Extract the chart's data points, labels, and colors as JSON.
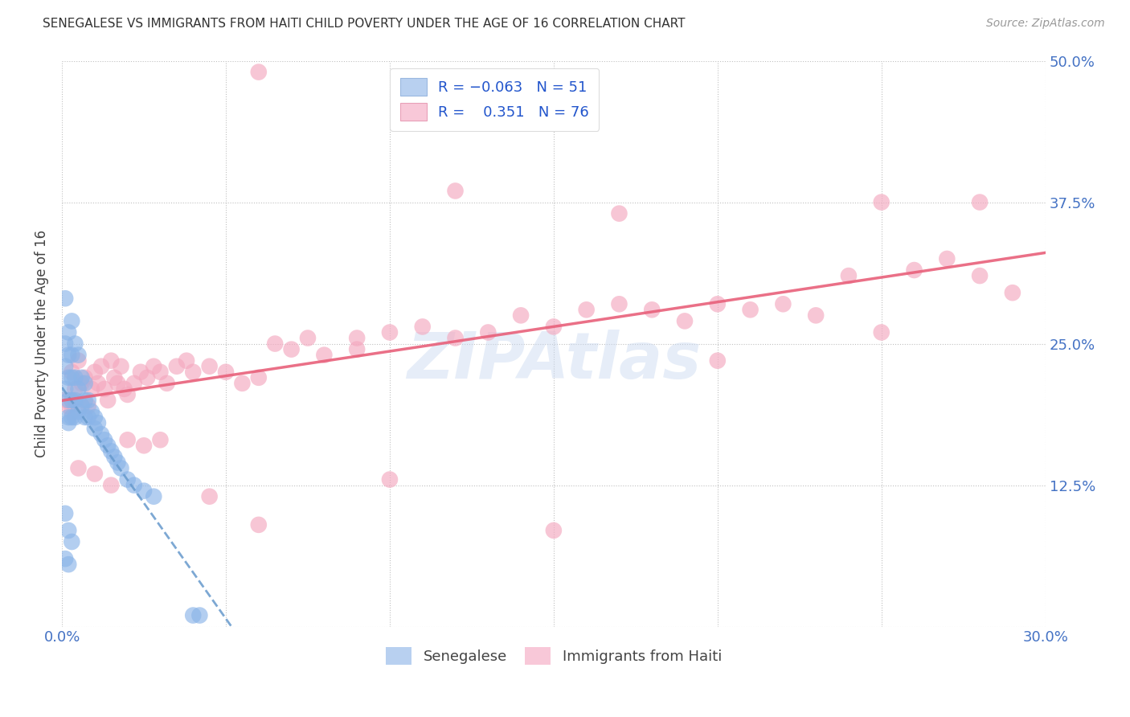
{
  "title": "SENEGALESE VS IMMIGRANTS FROM HAITI CHILD POVERTY UNDER THE AGE OF 16 CORRELATION CHART",
  "source": "Source: ZipAtlas.com",
  "ylabel": "Child Poverty Under the Age of 16",
  "xlim": [
    0.0,
    0.3
  ],
  "ylim": [
    0.0,
    0.5
  ],
  "xticks": [
    0.0,
    0.05,
    0.1,
    0.15,
    0.2,
    0.25,
    0.3
  ],
  "xticklabels": [
    "0.0%",
    "",
    "",
    "",
    "",
    "",
    "30.0%"
  ],
  "yticks": [
    0.0,
    0.125,
    0.25,
    0.375,
    0.5
  ],
  "yticklabels_right": [
    "",
    "12.5%",
    "25.0%",
    "37.5%",
    "50.0%"
  ],
  "watermark": "ZIPAtlas",
  "senegalese_color": "#8ab4e8",
  "haiti_color": "#f4a8bf",
  "regression_senegalese_color": "#6699cc",
  "regression_haiti_color": "#e8607a",
  "senegalese_x": [
    0.001,
    0.001,
    0.001,
    0.001,
    0.002,
    0.002,
    0.002,
    0.002,
    0.002,
    0.002,
    0.003,
    0.003,
    0.003,
    0.003,
    0.003,
    0.004,
    0.004,
    0.004,
    0.004,
    0.005,
    0.005,
    0.005,
    0.006,
    0.006,
    0.007,
    0.007,
    0.007,
    0.008,
    0.008,
    0.009,
    0.01,
    0.01,
    0.011,
    0.012,
    0.013,
    0.014,
    0.015,
    0.016,
    0.017,
    0.018,
    0.02,
    0.022,
    0.025,
    0.028,
    0.001,
    0.002,
    0.003,
    0.001,
    0.002,
    0.04,
    0.042
  ],
  "senegalese_y": [
    0.29,
    0.25,
    0.23,
    0.21,
    0.26,
    0.24,
    0.22,
    0.2,
    0.185,
    0.18,
    0.27,
    0.24,
    0.22,
    0.2,
    0.185,
    0.25,
    0.22,
    0.2,
    0.185,
    0.24,
    0.21,
    0.19,
    0.22,
    0.195,
    0.215,
    0.2,
    0.185,
    0.2,
    0.185,
    0.19,
    0.185,
    0.175,
    0.18,
    0.17,
    0.165,
    0.16,
    0.155,
    0.15,
    0.145,
    0.14,
    0.13,
    0.125,
    0.12,
    0.115,
    0.1,
    0.085,
    0.075,
    0.06,
    0.055,
    0.01,
    0.01
  ],
  "haiti_x": [
    0.001,
    0.002,
    0.003,
    0.003,
    0.004,
    0.005,
    0.006,
    0.007,
    0.008,
    0.009,
    0.01,
    0.011,
    0.012,
    0.013,
    0.014,
    0.015,
    0.016,
    0.017,
    0.018,
    0.019,
    0.02,
    0.022,
    0.024,
    0.026,
    0.028,
    0.03,
    0.032,
    0.035,
    0.038,
    0.04,
    0.045,
    0.05,
    0.055,
    0.06,
    0.065,
    0.07,
    0.075,
    0.08,
    0.09,
    0.1,
    0.11,
    0.12,
    0.13,
    0.14,
    0.15,
    0.16,
    0.17,
    0.18,
    0.19,
    0.2,
    0.21,
    0.22,
    0.23,
    0.24,
    0.25,
    0.26,
    0.27,
    0.28,
    0.29,
    0.005,
    0.01,
    0.015,
    0.02,
    0.025,
    0.03,
    0.045,
    0.06,
    0.1,
    0.15,
    0.2,
    0.25,
    0.17,
    0.28,
    0.12,
    0.09,
    0.06
  ],
  "haiti_y": [
    0.2,
    0.195,
    0.225,
    0.19,
    0.21,
    0.235,
    0.215,
    0.22,
    0.195,
    0.21,
    0.225,
    0.215,
    0.23,
    0.21,
    0.2,
    0.235,
    0.22,
    0.215,
    0.23,
    0.21,
    0.205,
    0.215,
    0.225,
    0.22,
    0.23,
    0.225,
    0.215,
    0.23,
    0.235,
    0.225,
    0.23,
    0.225,
    0.215,
    0.22,
    0.25,
    0.245,
    0.255,
    0.24,
    0.255,
    0.26,
    0.265,
    0.255,
    0.26,
    0.275,
    0.265,
    0.28,
    0.285,
    0.28,
    0.27,
    0.285,
    0.28,
    0.285,
    0.275,
    0.31,
    0.26,
    0.315,
    0.325,
    0.31,
    0.295,
    0.14,
    0.135,
    0.125,
    0.165,
    0.16,
    0.165,
    0.115,
    0.09,
    0.13,
    0.085,
    0.235,
    0.375,
    0.365,
    0.375,
    0.385,
    0.245,
    0.49
  ]
}
